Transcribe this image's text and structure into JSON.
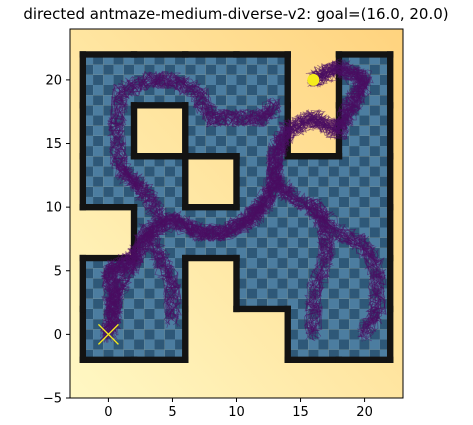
{
  "chart_data": {
    "type": "scatter",
    "title": "directed antmaze-medium-diverse-v2: goal=(16.0, 20.0)",
    "xlabel": "",
    "ylabel": "",
    "xlim": [
      -3,
      23
    ],
    "ylim": [
      -5,
      24
    ],
    "x_ticks": [
      0,
      5,
      10,
      15,
      20
    ],
    "y_ticks": [
      -5,
      0,
      5,
      10,
      15,
      20
    ],
    "grid": false,
    "goal": {
      "x": 16.0,
      "y": 20.0,
      "label": "goal=(16.0, 20.0)",
      "color": "#f5ec1c"
    },
    "start": {
      "x": 0.0,
      "y": 0.0,
      "marker": "x",
      "color": "#f5ec1c"
    },
    "trajectory_color": "#4b0f62",
    "wall_color": "#131313",
    "floor_colors": [
      "#2e5878",
      "#4c7da0"
    ],
    "background_colors": [
      "#fff8c4",
      "#ffd37e"
    ],
    "maze_cells_open": [
      [
        1,
        1
      ],
      [
        1,
        2
      ],
      [
        1,
        5
      ],
      [
        1,
        6
      ],
      [
        2,
        1
      ],
      [
        2,
        2
      ],
      [
        2,
        4
      ],
      [
        2,
        5
      ],
      [
        2,
        6
      ],
      [
        3,
        2
      ],
      [
        3,
        3
      ],
      [
        3,
        4
      ],
      [
        3,
        5
      ],
      [
        3,
        6
      ],
      [
        4,
        1
      ],
      [
        4,
        2
      ],
      [
        4,
        4
      ],
      [
        4,
        5
      ],
      [
        4,
        6
      ],
      [
        5,
        1
      ],
      [
        5,
        3
      ],
      [
        5,
        4
      ],
      [
        5,
        6
      ],
      [
        6,
        1
      ],
      [
        6,
        2
      ],
      [
        6,
        3
      ],
      [
        6,
        4
      ],
      [
        6,
        6
      ]
    ],
    "trajectory_path": [
      [
        0,
        0
      ],
      [
        0.5,
        2
      ],
      [
        0,
        5
      ],
      [
        2,
        6
      ],
      [
        3,
        8
      ],
      [
        5,
        9
      ],
      [
        7,
        8
      ],
      [
        9,
        8
      ],
      [
        11,
        9
      ],
      [
        12,
        10
      ],
      [
        13,
        12
      ],
      [
        13,
        14
      ],
      [
        14,
        16
      ],
      [
        16,
        17
      ],
      [
        18,
        16
      ],
      [
        19,
        18
      ],
      [
        20,
        20
      ],
      [
        18,
        21
      ],
      [
        16,
        20
      ]
    ],
    "trajectory_branches": [
      [
        [
          4,
          9
        ],
        [
          3,
          11
        ],
        [
          2,
          12
        ],
        [
          1,
          13
        ],
        [
          0.5,
          16
        ],
        [
          1,
          19
        ],
        [
          3,
          20
        ],
        [
          5,
          20
        ],
        [
          7,
          19
        ],
        [
          8,
          17
        ],
        [
          10,
          17
        ],
        [
          12,
          17
        ],
        [
          13,
          18
        ]
      ],
      [
        [
          13,
          12
        ],
        [
          14,
          11
        ],
        [
          16,
          10
        ],
        [
          18,
          8
        ],
        [
          20,
          7
        ],
        [
          21,
          5
        ],
        [
          21,
          2
        ],
        [
          20,
          0
        ]
      ],
      [
        [
          16,
          10
        ],
        [
          17,
          8
        ],
        [
          17,
          6
        ],
        [
          16,
          3
        ],
        [
          16,
          0
        ]
      ],
      [
        [
          2,
          6
        ],
        [
          1,
          4
        ],
        [
          0,
          2
        ]
      ],
      [
        [
          3,
          8
        ],
        [
          4,
          6
        ],
        [
          5,
          4
        ],
        [
          5,
          1
        ]
      ]
    ]
  }
}
